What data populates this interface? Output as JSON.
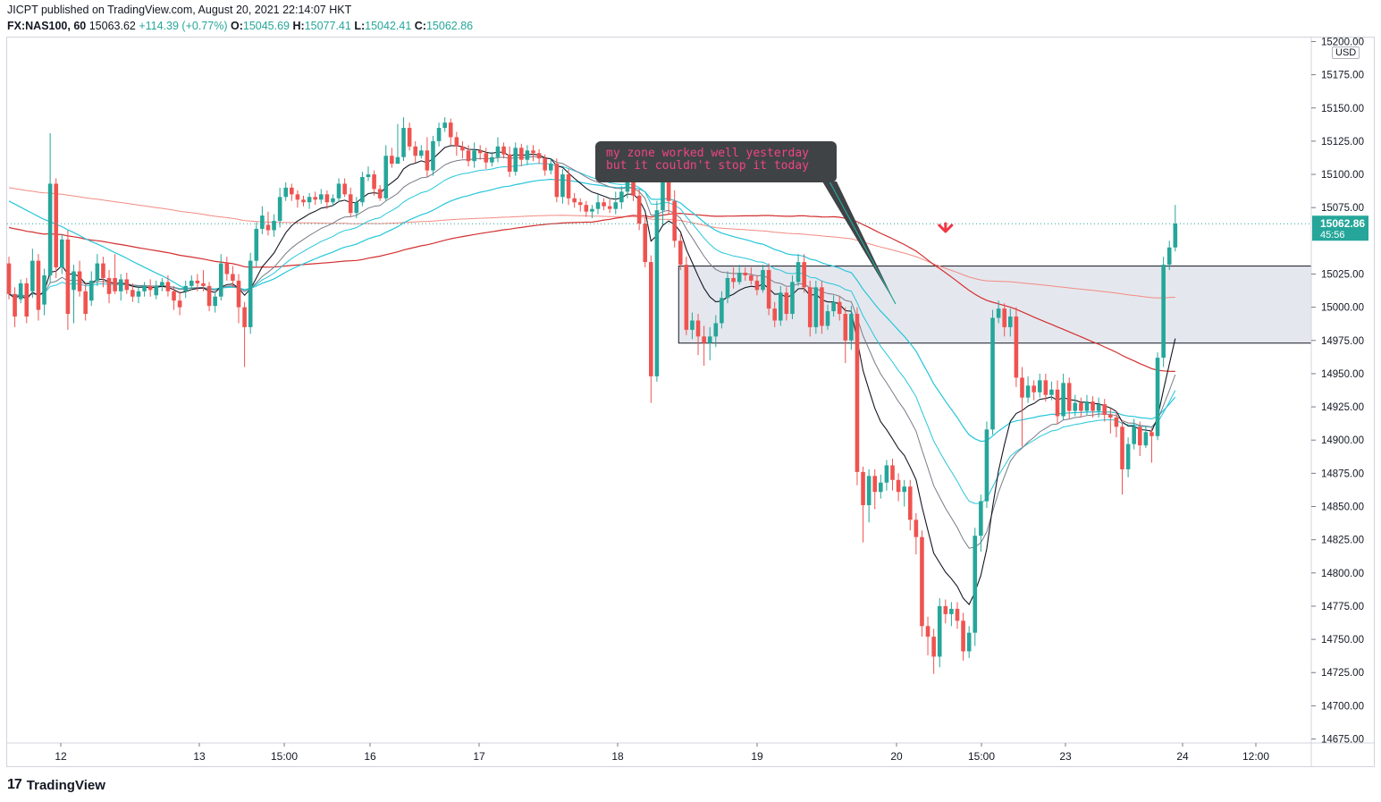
{
  "header": {
    "publisher": "JICPT published on TradingView.com, August 20, 2021 22:14:07 HKT",
    "symbol": "FX:NAS100, 60",
    "last": "15063.62",
    "change": "+114.39 (+0.77%)",
    "o_label": "O:",
    "o": "15045.69",
    "h_label": "H:",
    "h": "15077.41",
    "l_label": "L:",
    "l": "15042.41",
    "c_label": "C:",
    "c": "15062.86"
  },
  "footer": {
    "brand": "TradingView",
    "logo_icon": "tradingview-logo-icon"
  },
  "colors": {
    "up": "#26a69a",
    "down": "#ef5350",
    "ma_red": "#d32f2f",
    "ma_pink": "#f28b82",
    "ma_teal": "#26c6da",
    "ma_black": "#131722",
    "ma_gray": "#787b86",
    "zone": "#e0e3eb"
  },
  "chart_data": {
    "type": "candlestick",
    "currency": "USD",
    "ylim": [
      14672,
      15203
    ],
    "price_ticks": [
      15200,
      15175,
      15150,
      15125,
      15100,
      15075,
      15025,
      15000,
      14975,
      14950,
      14925,
      14900,
      14875,
      14850,
      14825,
      14800,
      14775,
      14750,
      14725,
      14700,
      14675
    ],
    "time_labels": [
      "12",
      "13",
      "15:00",
      "16",
      "17",
      "18",
      "19",
      "20",
      "15:00",
      "23",
      "24",
      "12:00"
    ],
    "last_price": "15062.86",
    "countdown": "45:56",
    "zone": {
      "top": 15031,
      "bottom": 14973,
      "start_bar": 114
    },
    "annotation": "my zone worked well yesterday\nbut it couldn't stop it today",
    "arrow": {
      "bar": 159,
      "price": 15059,
      "direction": "down"
    },
    "candles": [
      [
        15033,
        15010,
        15038,
        15006
      ],
      [
        15010,
        14993,
        15015,
        14985
      ],
      [
        15006,
        15018,
        15021,
        15003
      ],
      [
        15018,
        14993,
        15022,
        14988
      ],
      [
        15012,
        15035,
        15044,
        15007
      ],
      [
        15035,
        14998,
        15040,
        14990
      ],
      [
        15002,
        15024,
        15029,
        14994
      ],
      [
        15024,
        15093,
        15131,
        15018
      ],
      [
        15093,
        15030,
        15097,
        15022
      ],
      [
        15030,
        15051,
        15055,
        15025
      ],
      [
        15051,
        14995,
        15058,
        14983
      ],
      [
        15013,
        15027,
        15032,
        14988
      ],
      [
        15027,
        15012,
        15035,
        15008
      ],
      [
        15012,
        14995,
        15018,
        14990
      ],
      [
        15005,
        15020,
        15027,
        15001
      ],
      [
        15020,
        15033,
        15040,
        15016
      ],
      [
        15033,
        15022,
        15038,
        15015
      ],
      [
        15022,
        15010,
        15028,
        15003
      ],
      [
        15022,
        15012,
        15040,
        15010
      ],
      [
        15012,
        15021,
        15025,
        15005
      ],
      [
        15021,
        15013,
        15026,
        15010
      ],
      [
        15013,
        15008,
        15018,
        15004
      ],
      [
        15008,
        15012,
        15015,
        15003
      ],
      [
        15012,
        15016,
        15019,
        15008
      ],
      [
        15016,
        15013,
        15021,
        15008
      ],
      [
        15009,
        15016,
        15020,
        15006
      ],
      [
        15016,
        15019,
        15022,
        15012
      ],
      [
        15019,
        15012,
        15024,
        15008
      ],
      [
        15012,
        15005,
        15016,
        14998
      ],
      [
        15005,
        15000,
        15012,
        14994
      ],
      [
        15012,
        15016,
        15020,
        15007
      ],
      [
        15016,
        15020,
        15024,
        15013
      ],
      [
        15020,
        15018,
        15025,
        15012
      ],
      [
        15018,
        15016,
        15028,
        15012
      ],
      [
        15016,
        15001,
        15019,
        14997
      ],
      [
        15001,
        15008,
        15012,
        14996
      ],
      [
        15008,
        15033,
        15040,
        15005
      ],
      [
        15033,
        15025,
        15038,
        15020
      ],
      [
        15025,
        15020,
        15031,
        15015
      ],
      [
        15020,
        15000,
        15025,
        14988
      ],
      [
        15000,
        14985,
        15004,
        14955
      ],
      [
        14985,
        15035,
        15041,
        14980
      ],
      [
        15035,
        15059,
        15064,
        15030
      ],
      [
        15059,
        15069,
        15076,
        15055
      ],
      [
        15062,
        15058,
        15072,
        15054
      ],
      [
        15058,
        15065,
        15070,
        15053
      ],
      [
        15065,
        15083,
        15090,
        15060
      ],
      [
        15083,
        15090,
        15094,
        15080
      ],
      [
        15090,
        15085,
        15093,
        15080
      ],
      [
        15085,
        15081,
        15088,
        15075
      ],
      [
        15081,
        15079,
        15084,
        15076
      ],
      [
        15079,
        15083,
        15086,
        15074
      ],
      [
        15083,
        15081,
        15087,
        15077
      ],
      [
        15081,
        15085,
        15089,
        15078
      ],
      [
        15085,
        15079,
        15088,
        15074
      ],
      [
        15079,
        15082,
        15085,
        15076
      ],
      [
        15082,
        15093,
        15097,
        15079
      ],
      [
        15093,
        15085,
        15097,
        15083
      ],
      [
        15085,
        15071,
        15090,
        15068
      ],
      [
        15071,
        15079,
        15083,
        15067
      ],
      [
        15079,
        15098,
        15102,
        15076
      ],
      [
        15098,
        15100,
        15106,
        15095
      ],
      [
        15100,
        15089,
        15103,
        15084
      ],
      [
        15089,
        15082,
        15092,
        15080
      ],
      [
        15082,
        15114,
        15122,
        15080
      ],
      [
        15114,
        15108,
        15120,
        15105
      ],
      [
        15108,
        15113,
        15138,
        15112
      ],
      [
        15113,
        15135,
        15143,
        15110
      ],
      [
        15135,
        15121,
        15139,
        15118
      ],
      [
        15121,
        15114,
        15125,
        15109
      ],
      [
        15114,
        15118,
        15122,
        15112
      ],
      [
        15118,
        15103,
        15128,
        15098
      ],
      [
        15103,
        15125,
        15129,
        15099
      ],
      [
        15125,
        15135,
        15139,
        15121
      ],
      [
        15135,
        15139,
        15143,
        15132
      ],
      [
        15139,
        15128,
        15142,
        15122
      ],
      [
        15128,
        15121,
        15132,
        15114
      ],
      [
        15121,
        15118,
        15125,
        15112
      ],
      [
        15118,
        15110,
        15122,
        15106
      ],
      [
        15110,
        15118,
        15124,
        15105
      ],
      [
        15118,
        15116,
        15122,
        15111
      ],
      [
        15116,
        15109,
        15120,
        15104
      ],
      [
        15109,
        15113,
        15117,
        15106
      ],
      [
        15113,
        15121,
        15128,
        15109
      ],
      [
        15121,
        15115,
        15124,
        15112
      ],
      [
        15115,
        15102,
        15121,
        15098
      ],
      [
        15102,
        15120,
        15124,
        15099
      ],
      [
        15120,
        15111,
        15123,
        15106
      ],
      [
        15111,
        15118,
        15122,
        15107
      ],
      [
        15118,
        15116,
        15122,
        15110
      ],
      [
        15116,
        15112,
        15119,
        15108
      ],
      [
        15112,
        15103,
        15115,
        15099
      ],
      [
        15103,
        15108,
        15112,
        15100
      ],
      [
        15108,
        15083,
        15112,
        15079
      ],
      [
        15083,
        15100,
        15104,
        15078
      ],
      [
        15100,
        15082,
        15104,
        15077
      ],
      [
        15082,
        15079,
        15086,
        15075
      ],
      [
        15079,
        15077,
        15082,
        15072
      ],
      [
        15077,
        15072,
        15080,
        15068
      ],
      [
        15072,
        15074,
        15077,
        15067
      ],
      [
        15074,
        15079,
        15085,
        15070
      ],
      [
        15079,
        15076,
        15082,
        15073
      ],
      [
        15076,
        15074,
        15081,
        15071
      ],
      [
        15074,
        15079,
        15087,
        15070
      ],
      [
        15079,
        15087,
        15091,
        15074
      ],
      [
        15087,
        15098,
        15102,
        15082
      ],
      [
        15098,
        15084,
        15104,
        15080
      ],
      [
        15084,
        15063,
        15089,
        15058
      ],
      [
        15063,
        15034,
        15068,
        15030
      ],
      [
        15034,
        14948,
        15039,
        14928
      ],
      [
        14948,
        15073,
        15080,
        14944
      ],
      [
        15073,
        15096,
        15104,
        15062
      ],
      [
        15096,
        15080,
        15102,
        15070
      ],
      [
        15080,
        15050,
        15088,
        15045
      ],
      [
        15050,
        15032,
        15055,
        15028
      ],
      [
        15032,
        14983,
        15038,
        14979
      ],
      [
        14983,
        14990,
        14996,
        14976
      ],
      [
        14990,
        14978,
        14995,
        14964
      ],
      [
        14978,
        14973,
        14986,
        14956
      ],
      [
        14973,
        14978,
        14985,
        14960
      ],
      [
        14978,
        14988,
        14994,
        14970
      ],
      [
        14988,
        15007,
        15012,
        14984
      ],
      [
        15007,
        15022,
        15027,
        15003
      ],
      [
        15022,
        15019,
        15030,
        15014
      ],
      [
        15019,
        15026,
        15032,
        15017
      ],
      [
        15026,
        15024,
        15030,
        15020
      ],
      [
        15024,
        15020,
        15030,
        15017
      ],
      [
        15020,
        15013,
        15024,
        15009
      ],
      [
        15013,
        15028,
        15032,
        15011
      ],
      [
        15028,
        14999,
        15033,
        14994
      ],
      [
        14999,
        14990,
        15004,
        14985
      ],
      [
        14990,
        15011,
        15016,
        14986
      ],
      [
        15011,
        14995,
        15015,
        14990
      ],
      [
        14995,
        15019,
        15024,
        14991
      ],
      [
        15019,
        15034,
        15040,
        15016
      ],
      [
        15034,
        15015,
        15040,
        15011
      ],
      [
        15015,
        14985,
        15020,
        14978
      ],
      [
        14985,
        15015,
        15020,
        14980
      ],
      [
        15015,
        14986,
        15020,
        14980
      ],
      [
        14986,
        14997,
        15002,
        14983
      ],
      [
        14997,
        15004,
        15009,
        14993
      ],
      [
        15004,
        14995,
        15008,
        14990
      ],
      [
        14995,
        14975,
        15000,
        14958
      ],
      [
        14975,
        14995,
        15001,
        14968
      ],
      [
        14995,
        14876,
        15000,
        14866
      ],
      [
        14876,
        14851,
        14880,
        14823
      ],
      [
        14851,
        14873,
        14878,
        14838
      ],
      [
        14873,
        14861,
        14878,
        14848
      ],
      [
        14861,
        14868,
        14874,
        14856
      ],
      [
        14868,
        14881,
        14885,
        14862
      ],
      [
        14881,
        14870,
        14886,
        14862
      ],
      [
        14870,
        14861,
        14875,
        14854
      ],
      [
        14861,
        14865,
        14870,
        14850
      ],
      [
        14865,
        14840,
        14870,
        14832
      ],
      [
        14840,
        14827,
        14845,
        14814
      ],
      [
        14827,
        14760,
        14832,
        14752
      ],
      [
        14760,
        14752,
        14767,
        14738
      ],
      [
        14752,
        14737,
        14758,
        14724
      ],
      [
        14737,
        14775,
        14781,
        14729
      ],
      [
        14775,
        14769,
        14780,
        14762
      ],
      [
        14769,
        14773,
        14778,
        14760
      ],
      [
        14773,
        14764,
        14778,
        14758
      ],
      [
        14764,
        14741,
        14770,
        14734
      ],
      [
        14741,
        14755,
        14760,
        14736
      ],
      [
        14755,
        14828,
        14834,
        14745
      ],
      [
        14828,
        14854,
        14859,
        14816
      ],
      [
        14854,
        14908,
        14914,
        14849
      ],
      [
        14908,
        14992,
        14998,
        14904
      ],
      [
        14992,
        14999,
        15005,
        14988
      ],
      [
        14999,
        14985,
        15003,
        14978
      ],
      [
        14985,
        14993,
        14999,
        14978
      ],
      [
        14993,
        14947,
        15000,
        14940
      ],
      [
        14947,
        14932,
        14955,
        14895
      ],
      [
        14932,
        14941,
        14948,
        14928
      ],
      [
        14941,
        14936,
        14945,
        14930
      ],
      [
        14936,
        14945,
        14950,
        14932
      ],
      [
        14945,
        14934,
        14950,
        14929
      ],
      [
        14934,
        14938,
        14944,
        14930
      ],
      [
        14938,
        14918,
        14945,
        14912
      ],
      [
        14918,
        14943,
        14950,
        14915
      ],
      [
        14943,
        14922,
        14947,
        14916
      ],
      [
        14922,
        14928,
        14934,
        14918
      ],
      [
        14928,
        14922,
        14932,
        14917
      ],
      [
        14922,
        14929,
        14934,
        14919
      ],
      [
        14929,
        14922,
        14933,
        14917
      ],
      [
        14922,
        14927,
        14932,
        14917
      ],
      [
        14927,
        14919,
        14931,
        14914
      ],
      [
        14919,
        14917,
        14924,
        14905
      ],
      [
        14917,
        14910,
        14922,
        14902
      ],
      [
        14910,
        14878,
        14915,
        14859
      ],
      [
        14878,
        14897,
        14902,
        14872
      ],
      [
        14897,
        14910,
        14916,
        14893
      ],
      [
        14910,
        14896,
        14914,
        14888
      ],
      [
        14896,
        14906,
        14910,
        14894
      ],
      [
        14906,
        14903,
        14909,
        14883
      ],
      [
        14903,
        14962,
        14966,
        14900
      ],
      [
        14962,
        15032,
        15038,
        14955
      ],
      [
        15032,
        15045,
        15050,
        15028
      ],
      [
        15045,
        15063,
        15077,
        15042
      ]
    ]
  }
}
